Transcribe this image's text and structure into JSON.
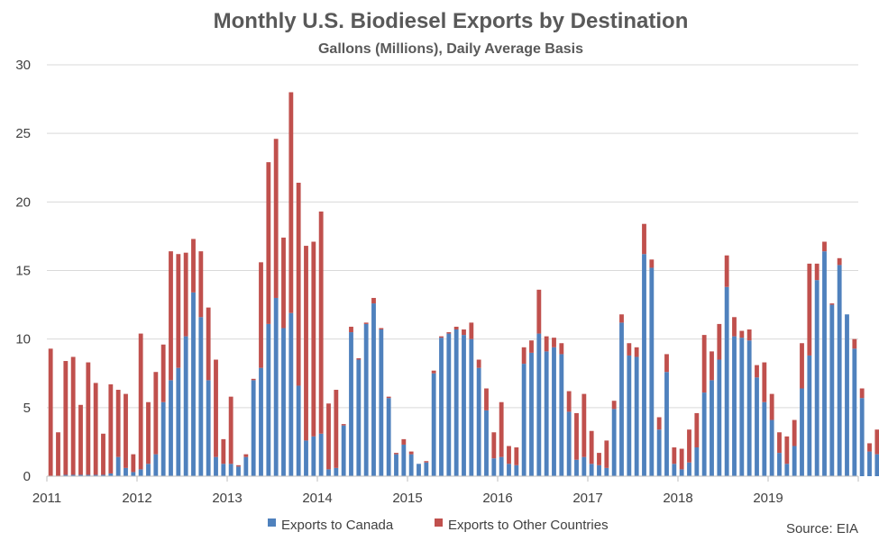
{
  "chart_data": {
    "type": "bar",
    "stacked": true,
    "title": "Monthly U.S. Biodiesel Exports by Destination",
    "subtitle": "Gallons (Millions), Daily Average Basis",
    "source": "Source: EIA",
    "ylim": [
      0,
      30
    ],
    "yticks": [
      "0",
      "5",
      "10",
      "15",
      "20",
      "25",
      "30"
    ],
    "grid": true,
    "legend_placement": "bottom",
    "year_labels": [
      "2011",
      "2012",
      "2013",
      "2014",
      "2015",
      "2016",
      "2017",
      "2018",
      "2019"
    ],
    "series": [
      {
        "name": "Exports to Canada",
        "color": "#4f81bd",
        "values": [
          0.0,
          0.0,
          0.1,
          0.1,
          0.1,
          0.1,
          0.1,
          0.1,
          0.2,
          1.4,
          0.6,
          0.3,
          0.5,
          0.9,
          1.6,
          5.4,
          7.0,
          7.9,
          10.2,
          13.4,
          11.6,
          7.0,
          1.4,
          0.9,
          0.9,
          0.7,
          1.4,
          7.0,
          7.9,
          11.1,
          13.0,
          10.8,
          11.9,
          6.6,
          2.6,
          2.9,
          3.1,
          0.5,
          0.6,
          3.7,
          10.5,
          8.5,
          11.1,
          12.6,
          10.7,
          5.7,
          1.6,
          2.3,
          1.6,
          0.9,
          1.0,
          7.5,
          10.1,
          10.4,
          10.7,
          10.3,
          10.0,
          7.9,
          4.8,
          1.3,
          1.4,
          0.9,
          0.8,
          8.2,
          9.0,
          10.4,
          9.1,
          9.4,
          8.9,
          4.7,
          1.2,
          1.4,
          0.9,
          0.8,
          0.6,
          4.9,
          11.2,
          8.8,
          8.7,
          16.2,
          15.2,
          3.4,
          7.6,
          0.9,
          0.5,
          1.0,
          2.1,
          6.1,
          7.0,
          8.5,
          13.8,
          10.2,
          10.1,
          9.9,
          7.2,
          5.4,
          4.1,
          1.7,
          0.9,
          2.2,
          6.4,
          8.8,
          14.3,
          16.4,
          12.5,
          15.4,
          11.8,
          9.3,
          5.7,
          1.8,
          1.6
        ]
      },
      {
        "name": "Exports to Other Countries",
        "color": "#c0504d",
        "values": [
          9.3,
          3.2,
          8.3,
          8.6,
          5.1,
          8.2,
          6.7,
          3.0,
          6.5,
          4.9,
          5.4,
          1.3,
          9.9,
          4.5,
          6.0,
          4.2,
          9.4,
          8.3,
          6.1,
          3.9,
          4.8,
          5.3,
          7.1,
          1.8,
          4.9,
          0.1,
          0.2,
          0.1,
          7.7,
          11.8,
          11.6,
          6.6,
          16.1,
          14.8,
          14.2,
          14.2,
          16.2,
          4.8,
          5.7,
          0.1,
          0.4,
          0.1,
          0.1,
          0.4,
          0.1,
          0.1,
          0.1,
          0.4,
          0.2,
          0.0,
          0.1,
          0.2,
          0.1,
          0.1,
          0.2,
          0.4,
          1.2,
          0.6,
          1.6,
          1.9,
          4.0,
          1.3,
          1.3,
          1.2,
          0.9,
          3.2,
          1.1,
          0.7,
          0.8,
          1.5,
          3.4,
          4.6,
          2.4,
          0.9,
          2.0,
          0.6,
          0.6,
          0.9,
          0.7,
          2.2,
          0.6,
          0.9,
          1.3,
          1.2,
          1.5,
          2.4,
          2.5,
          4.2,
          2.1,
          2.6,
          2.3,
          1.4,
          0.5,
          0.8,
          0.9,
          2.9,
          1.9,
          1.5,
          2.0,
          1.9,
          3.3,
          6.7,
          1.2,
          0.7,
          0.1,
          0.5,
          0.0,
          0.7,
          0.7,
          0.6,
          1.8
        ]
      }
    ]
  }
}
